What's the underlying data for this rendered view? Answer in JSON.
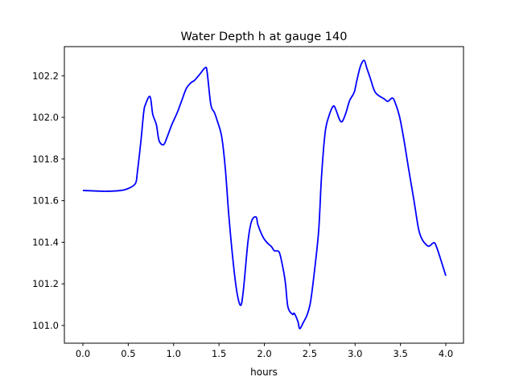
{
  "chart_data": {
    "type": "line",
    "title": "Water Depth h at gauge 140",
    "xlabel": "hours",
    "ylabel": "",
    "xlim": [
      -0.204,
      4.195
    ],
    "ylim": [
      100.915,
      102.34
    ],
    "xticks": [
      0.0,
      0.5,
      1.0,
      1.5,
      2.0,
      2.5,
      3.0,
      3.5,
      4.0
    ],
    "xtick_labels": [
      "0.0",
      "0.5",
      "1.0",
      "1.5",
      "2.0",
      "2.5",
      "3.0",
      "3.5",
      "4.0"
    ],
    "yticks": [
      101.0,
      101.2,
      101.4,
      101.6,
      101.8,
      102.0,
      102.2
    ],
    "ytick_labels": [
      "101.0",
      "101.2",
      "101.4",
      "101.6",
      "101.8",
      "102.0",
      "102.2"
    ],
    "grid": false,
    "series": [
      {
        "name": "h",
        "color": "#0000ff",
        "x": [
          0.0,
          0.24,
          0.42,
          0.51,
          0.58,
          0.6,
          0.64,
          0.67,
          0.69,
          0.74,
          0.77,
          0.81,
          0.84,
          0.89,
          0.93,
          0.98,
          1.04,
          1.09,
          1.14,
          1.19,
          1.23,
          1.29,
          1.35,
          1.37,
          1.41,
          1.45,
          1.48,
          1.53,
          1.57,
          1.61,
          1.66,
          1.7,
          1.74,
          1.77,
          1.82,
          1.86,
          1.91,
          1.93,
          1.99,
          2.04,
          2.08,
          2.11,
          2.16,
          2.19,
          2.23,
          2.26,
          2.31,
          2.33,
          2.37,
          2.39,
          2.43,
          2.47,
          2.51,
          2.56,
          2.6,
          2.63,
          2.67,
          2.71,
          2.76,
          2.79,
          2.83,
          2.86,
          2.9,
          2.94,
          2.99,
          3.02,
          3.06,
          3.1,
          3.13,
          3.17,
          3.21,
          3.25,
          3.32,
          3.36,
          3.41,
          3.44,
          3.49,
          3.54,
          3.59,
          3.65,
          3.7,
          3.74,
          3.79,
          3.82,
          3.87,
          3.9,
          3.95,
          4.0
        ],
        "y": [
          101.649,
          101.645,
          101.649,
          101.66,
          101.683,
          101.734,
          101.888,
          102.023,
          102.062,
          102.1,
          102.015,
          101.965,
          101.888,
          101.869,
          101.907,
          101.965,
          102.023,
          102.081,
          102.139,
          102.166,
          102.178,
          102.208,
          102.239,
          102.216,
          102.062,
          102.023,
          101.985,
          101.907,
          101.753,
          101.521,
          101.29,
          101.154,
          101.097,
          101.174,
          101.405,
          101.502,
          101.521,
          101.483,
          101.421,
          101.394,
          101.378,
          101.359,
          101.355,
          101.309,
          101.212,
          101.089,
          101.054,
          101.058,
          101.019,
          100.985,
          101.015,
          101.05,
          101.116,
          101.29,
          101.463,
          101.714,
          101.927,
          102.004,
          102.054,
          102.035,
          101.988,
          101.981,
          102.023,
          102.081,
          102.12,
          102.178,
          102.247,
          102.274,
          102.236,
          102.185,
          102.131,
          102.108,
          102.089,
          102.077,
          102.093,
          102.073,
          102.004,
          101.888,
          101.753,
          101.598,
          101.463,
          101.413,
          101.386,
          101.382,
          101.398,
          101.375,
          101.309,
          101.239
        ]
      }
    ]
  }
}
